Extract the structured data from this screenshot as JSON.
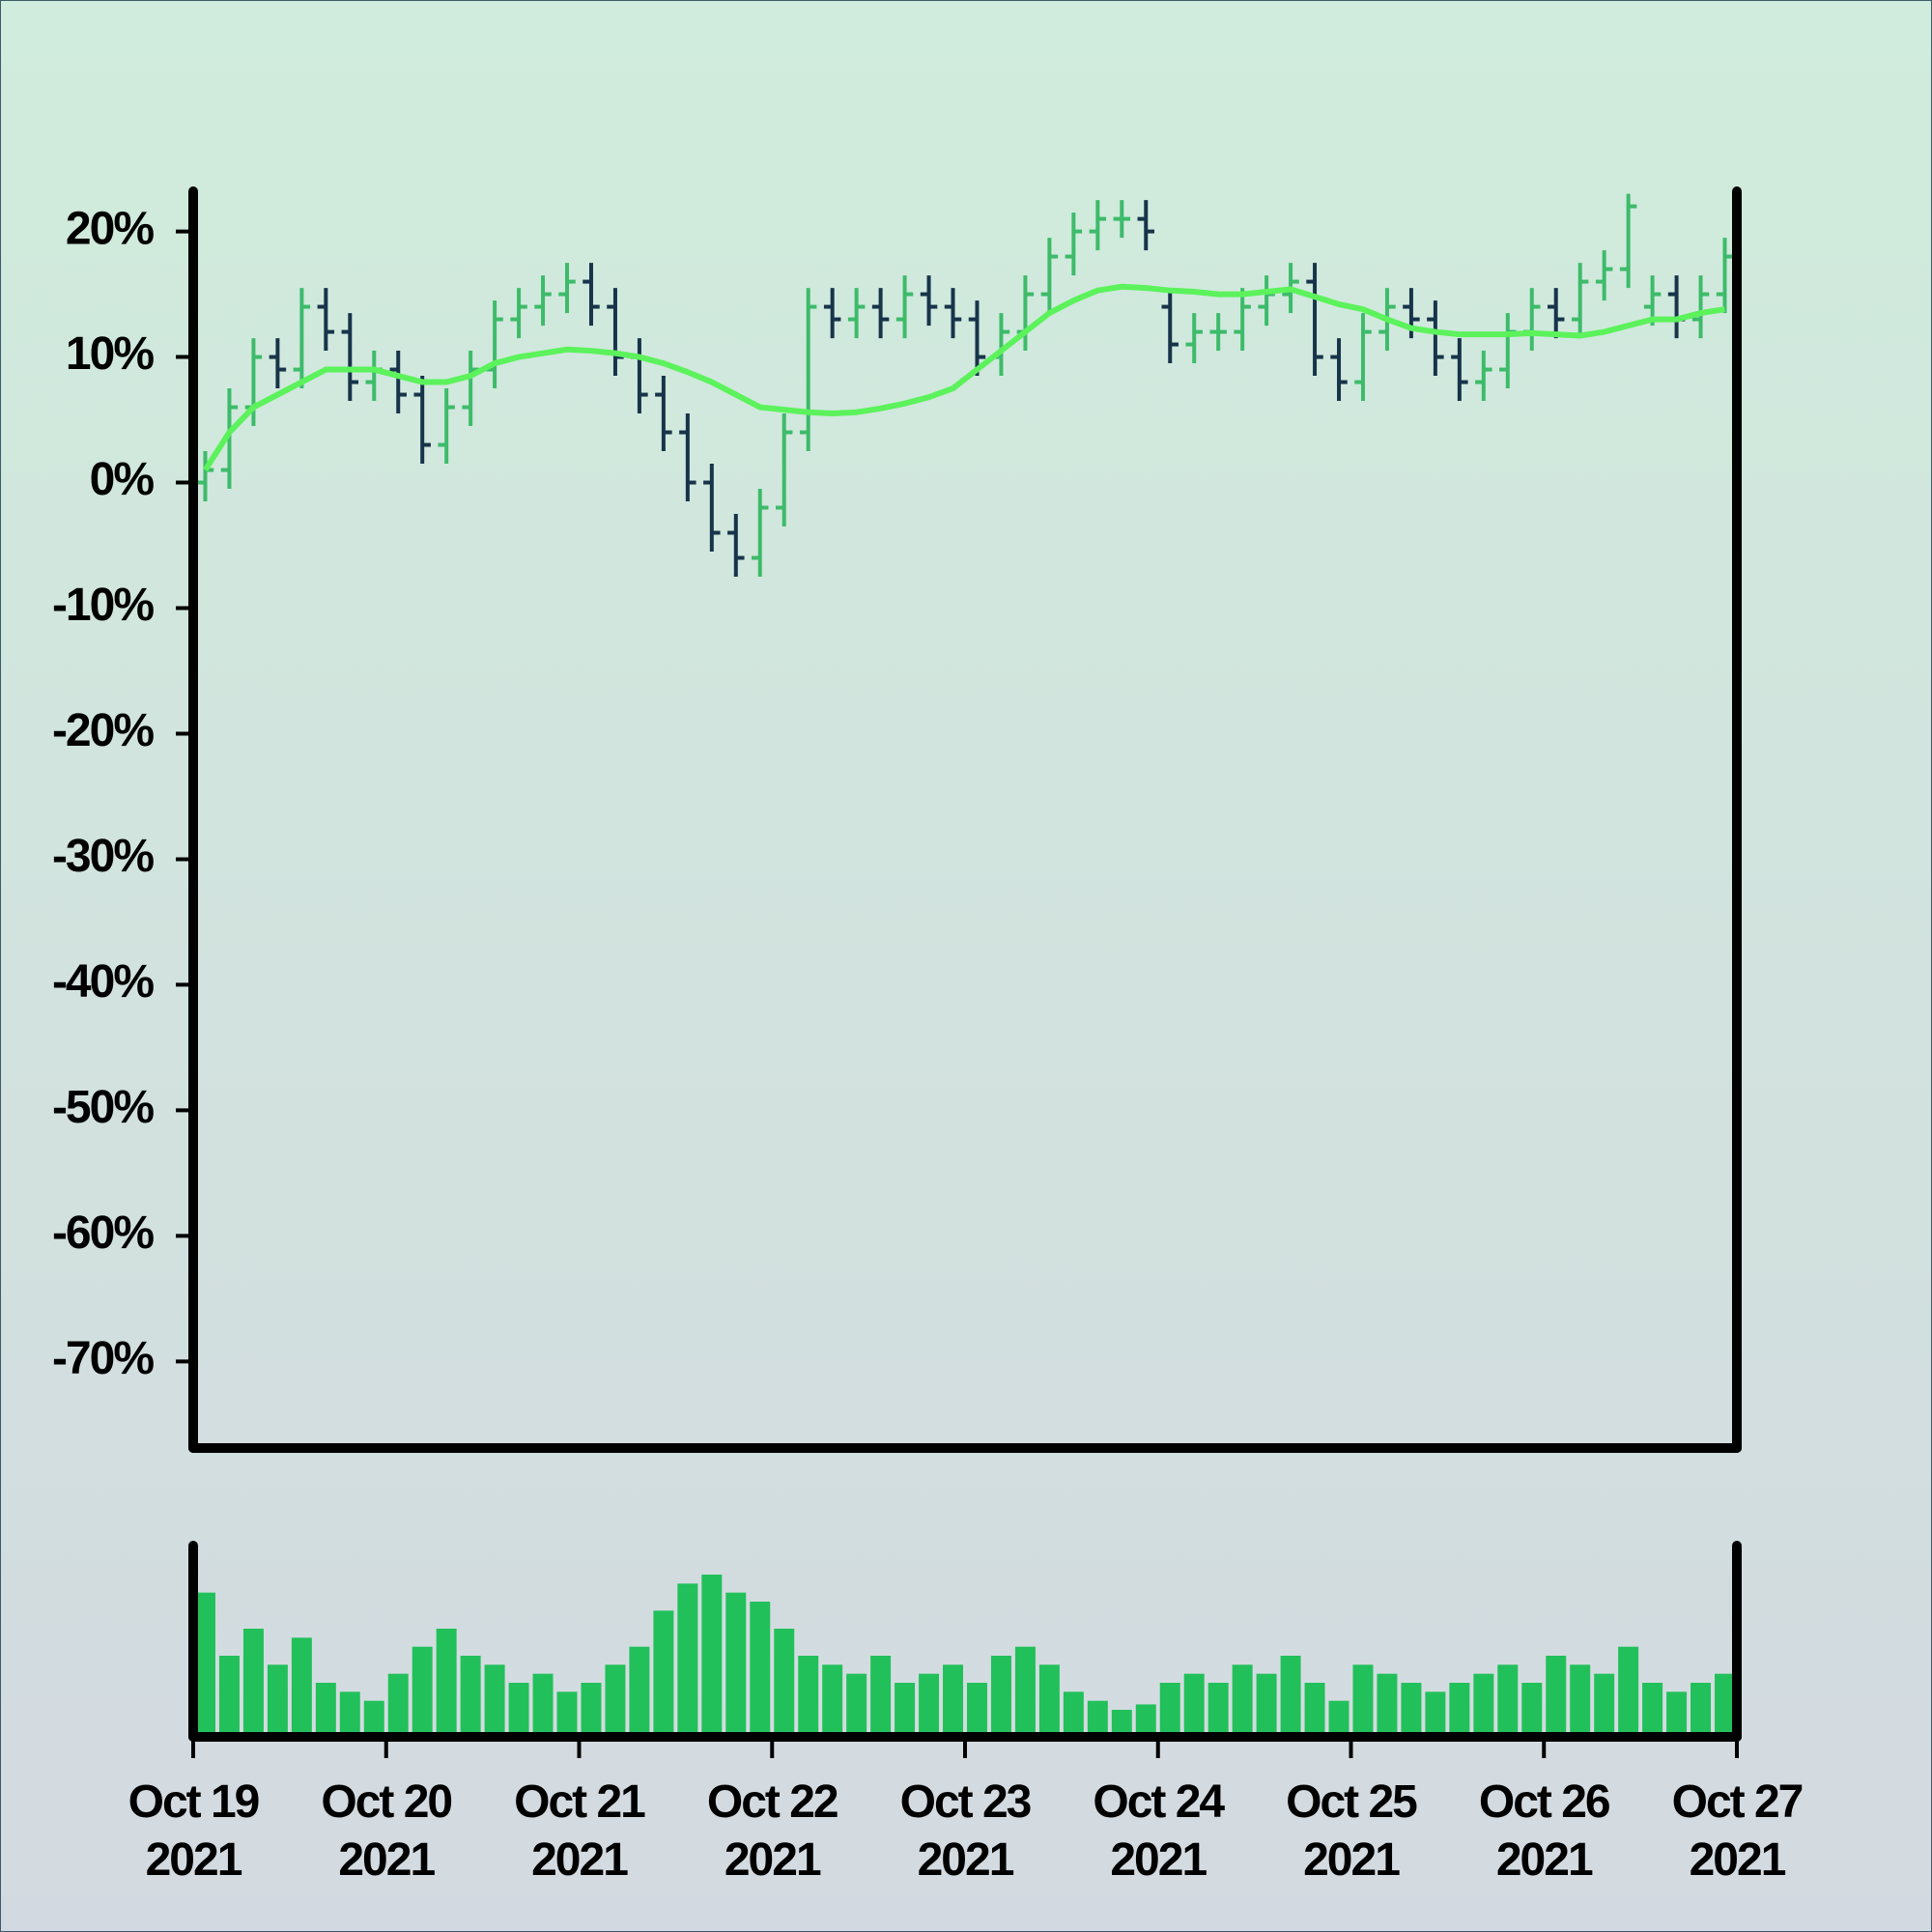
{
  "chart_data": {
    "type": "ohlc",
    "x": [
      0.0625,
      0.1875,
      0.3125,
      0.4375,
      0.5625,
      0.6875,
      0.8125,
      0.9375,
      1.0625,
      1.1875,
      1.3125,
      1.4375,
      1.5625,
      1.6875,
      1.8125,
      1.9375,
      2.0625,
      2.1875,
      2.3125,
      2.4375,
      2.5625,
      2.6875,
      2.8125,
      2.9375,
      3.0625,
      3.1875,
      3.3125,
      3.4375,
      3.5625,
      3.6875,
      3.8125,
      3.9375,
      4.0625,
      4.1875,
      4.3125,
      4.4375,
      4.5625,
      4.6875,
      4.8125,
      4.9375,
      5.0625,
      5.1875,
      5.3125,
      5.4375,
      5.5625,
      5.6875,
      5.8125,
      5.9375,
      6.0625,
      6.1875,
      6.3125,
      6.4375,
      6.5625,
      6.6875,
      6.8125,
      6.9375,
      7.0625,
      7.1875,
      7.3125,
      7.4375,
      7.5625,
      7.6875,
      7.8125,
      7.9375
    ],
    "open": [
      0,
      1,
      6,
      10,
      9,
      14,
      12,
      8,
      9,
      7,
      3,
      6,
      9,
      13,
      14,
      15,
      16,
      14,
      10,
      7,
      4,
      0,
      -4,
      -6,
      -2,
      4,
      14,
      13,
      14,
      13,
      15,
      14,
      13,
      10,
      12,
      15,
      18,
      20,
      21,
      21,
      14,
      11,
      12,
      12,
      14,
      15,
      16,
      10,
      8,
      12,
      14,
      13,
      10,
      8,
      9,
      12,
      14,
      13,
      16,
      17,
      14,
      15,
      13,
      15
    ],
    "high": [
      2.5,
      7.5,
      11.5,
      11.5,
      15.5,
      15.5,
      13.5,
      10.5,
      10.5,
      8.5,
      7.5,
      10.5,
      14.5,
      15.5,
      16.5,
      17.5,
      17.5,
      15.5,
      11.5,
      8.5,
      5.5,
      1.5,
      -2.5,
      -0.5,
      5.5,
      15.5,
      15.5,
      15.5,
      15.5,
      16.5,
      16.5,
      15.5,
      14.5,
      13.5,
      16.5,
      19.5,
      21.5,
      22.5,
      22.5,
      22.5,
      15.5,
      13.5,
      13.5,
      15.5,
      16.5,
      17.5,
      17.5,
      11.5,
      13.5,
      15.5,
      15.5,
      14.5,
      11.5,
      10.5,
      13.5,
      15.5,
      15.5,
      17.5,
      18.5,
      23,
      16.5,
      16.5,
      16.5,
      19.5
    ],
    "low": [
      -1.5,
      -0.5,
      4.5,
      7.5,
      7.5,
      10.5,
      6.5,
      6.5,
      5.5,
      1.5,
      1.5,
      4.5,
      7.5,
      11.5,
      12.5,
      13.5,
      12.5,
      8.5,
      5.5,
      2.5,
      -1.5,
      -5.5,
      -7.5,
      -7.5,
      -3.5,
      2.5,
      11.5,
      11.5,
      11.5,
      11.5,
      12.5,
      11.5,
      8.5,
      8.5,
      10.5,
      13.5,
      16.5,
      18.5,
      19.5,
      18.5,
      9.5,
      9.5,
      10.5,
      10.5,
      12.5,
      13.5,
      8.5,
      6.5,
      6.5,
      10.5,
      11.5,
      8.5,
      6.5,
      6.5,
      7.5,
      10.5,
      11.5,
      11.5,
      14.5,
      15.5,
      12.5,
      11.5,
      11.5,
      13.5
    ],
    "close": [
      1,
      6,
      10,
      9,
      14,
      12,
      8,
      9,
      7,
      3,
      6,
      9,
      13,
      14,
      15,
      16,
      14,
      10,
      7,
      4,
      0,
      -4,
      -6,
      -2,
      4,
      14,
      13,
      14,
      13,
      15,
      14,
      13,
      10,
      12,
      15,
      18,
      20,
      21,
      21,
      20,
      11,
      12,
      12,
      14,
      15,
      16,
      10,
      8,
      12,
      14,
      13,
      10,
      8,
      9,
      12,
      14,
      13,
      16,
      17,
      22,
      15,
      13,
      15,
      18
    ],
    "moving_average": [
      1,
      4,
      6,
      7,
      8,
      9,
      9,
      9,
      8.5,
      8,
      8,
      8.5,
      9.5,
      10,
      10.3,
      10.6,
      10.5,
      10.3,
      10,
      9.5,
      8.8,
      8,
      7,
      6,
      5.8,
      5.6,
      5.5,
      5.6,
      5.9,
      6.3,
      6.8,
      7.5,
      9,
      10.5,
      12,
      13.5,
      14.5,
      15.3,
      15.6,
      15.5,
      15.3,
      15.2,
      15,
      15,
      15.2,
      15.4,
      14.8,
      14.2,
      13.8,
      13,
      12.3,
      12,
      11.8,
      11.8,
      11.8,
      11.9,
      11.8,
      11.7,
      12,
      12.5,
      13,
      13,
      13.5,
      13.8
    ],
    "volume": [
      80,
      45,
      60,
      40,
      55,
      30,
      25,
      20,
      35,
      50,
      60,
      45,
      40,
      30,
      35,
      25,
      30,
      40,
      50,
      70,
      85,
      90,
      80,
      75,
      60,
      45,
      40,
      35,
      45,
      30,
      35,
      40,
      30,
      45,
      50,
      40,
      25,
      20,
      15,
      18,
      30,
      35,
      30,
      40,
      35,
      45,
      30,
      20,
      40,
      35,
      30,
      25,
      30,
      35,
      40,
      30,
      45,
      40,
      35,
      50,
      30,
      25,
      30,
      35
    ],
    "up_color": "#3dbb6a",
    "down_color": "#17344a",
    "ma_color": "#5cf25c",
    "volume_color": "#22c05a",
    "xlim": [
      0,
      8
    ],
    "xticks": [
      {
        "value": 0,
        "label": "Oct 19\n2021"
      },
      {
        "value": 1,
        "label": "Oct 20\n2021"
      },
      {
        "value": 2,
        "label": "Oct 21\n2021"
      },
      {
        "value": 3,
        "label": "Oct 22\n2021"
      },
      {
        "value": 4,
        "label": "Oct 23\n2021"
      },
      {
        "value": 5,
        "label": "Oct 24\n2021"
      },
      {
        "value": 6,
        "label": "Oct 25\n2021"
      },
      {
        "value": 7,
        "label": "Oct 26\n2021"
      },
      {
        "value": 8,
        "label": "Oct 27\n2021"
      }
    ],
    "ylim": [
      -76.9,
      23.2
    ],
    "yticks": [
      {
        "value": 20,
        "label": "20%"
      },
      {
        "value": 10,
        "label": "10%"
      },
      {
        "value": 0,
        "label": "0%"
      },
      {
        "value": -10,
        "label": "-10%"
      },
      {
        "value": -20,
        "label": "-20%"
      },
      {
        "value": -30,
        "label": "-30%"
      },
      {
        "value": -40,
        "label": "-40%"
      },
      {
        "value": -50,
        "label": "-50%"
      },
      {
        "value": -60,
        "label": "-60%"
      },
      {
        "value": -70,
        "label": "-70%"
      }
    ]
  }
}
